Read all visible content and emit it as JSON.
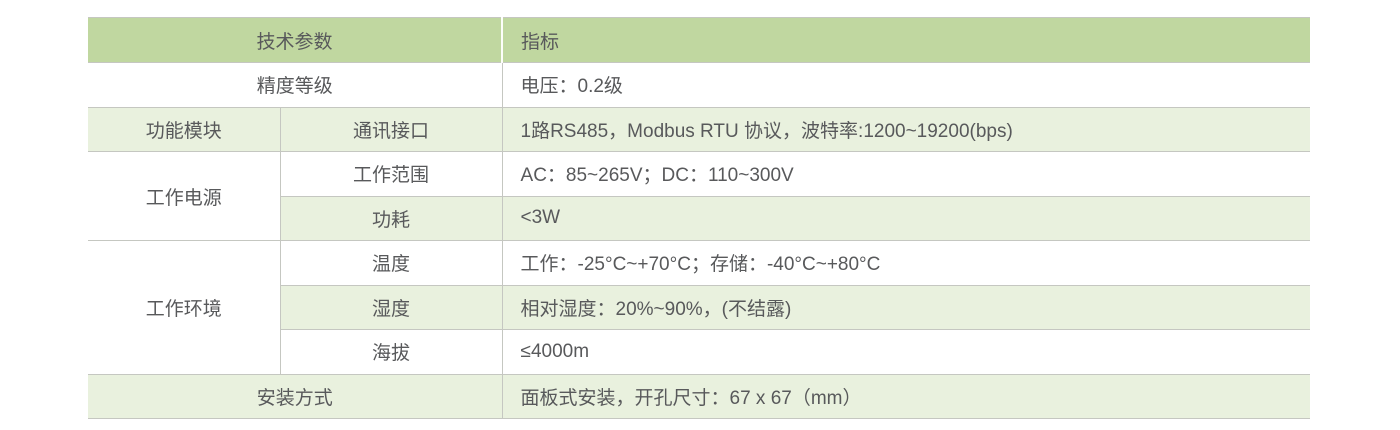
{
  "colors": {
    "header_bg": "#c0d7a0",
    "row_alt_bg": "#e9f1de",
    "border": "#c5c7c1",
    "text": "#58595b"
  },
  "table": {
    "header": {
      "params_label": "技术参数",
      "value_label": "指标"
    },
    "rows": [
      [
        "精度等级",
        "电压：0.2级"
      ],
      [
        "功能模块",
        "通讯接口",
        "1路RS485，Modbus RTU 协议，波特率:1200~19200(bps)"
      ],
      [
        "工作电源",
        "工作范围",
        "AC：85~265V；DC：110~300V"
      ],
      [
        "功耗",
        "<3W"
      ],
      [
        "工作环境",
        "温度",
        "工作：-25°C~+70°C；存储：-40°C~+80°C"
      ],
      [
        "湿度",
        "相对湿度：20%~90%，(不结露)"
      ],
      [
        "海拔",
        "≤4000m"
      ],
      [
        "安装方式",
        "面板式安装，开孔尺寸：67 x 67（mm）"
      ]
    ]
  }
}
